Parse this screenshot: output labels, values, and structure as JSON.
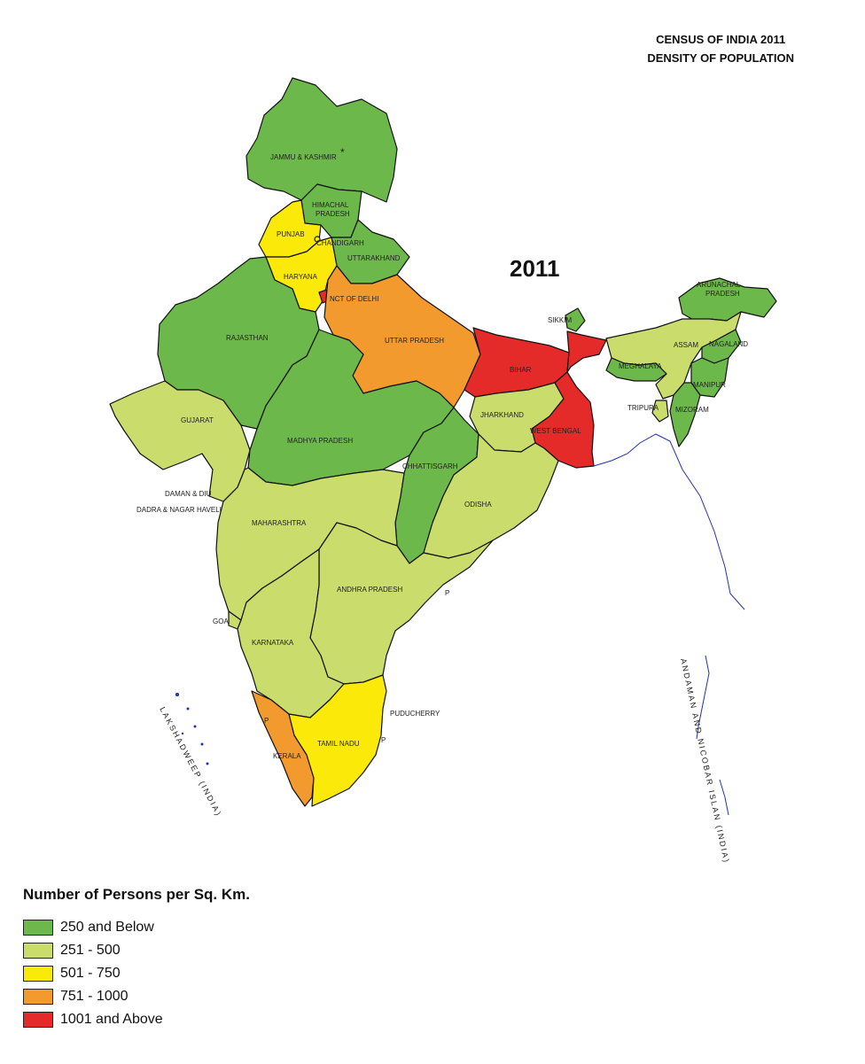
{
  "title": {
    "line1": "CENSUS OF INDIA 2011",
    "line2": "DENSITY OF POPULATION"
  },
  "year_label": "2011",
  "colors": {
    "low": "#6cb84a",
    "mid_low": "#cadc6c",
    "mid": "#fbe90a",
    "mid_high": "#f29a2e",
    "high": "#e52a2a"
  },
  "legend": {
    "title": "Number of Persons per Sq. Km.",
    "items": [
      {
        "label": "250 and Below",
        "color": "#6cb84a"
      },
      {
        "label": "251 - 500",
        "color": "#cadc6c"
      },
      {
        "label": "501 - 750",
        "color": "#fbe90a"
      },
      {
        "label": "751 - 1000",
        "color": "#f29a2e"
      },
      {
        "label": "1001 and Above",
        "color": "#e52a2a"
      }
    ]
  },
  "states": {
    "jk": "JAMMU & KASHMIR",
    "hp": "HIMACHAL PRADESH",
    "punjab": "PUNJAB",
    "chandigarh": "CHANDIGARH",
    "uttarakhand": "UTTARAKHAND",
    "haryana": "HARYANA",
    "delhi": "NCT OF DELHI",
    "rajasthan": "RAJASTHAN",
    "up": "UTTAR PRADESH",
    "bihar": "BIHAR",
    "sikkim": "SIKKIM",
    "arunachal": "ARUNACHAL PRADESH",
    "assam": "ASSAM",
    "nagaland": "NAGALAND",
    "meghalaya": "MEGHALAYA",
    "manipur": "MANIPUR",
    "tripura": "TRIPURA",
    "mizoram": "MIZORAM",
    "gujarat": "GUJARAT",
    "mp": "MADHYA PRADESH",
    "jharkhand": "JHARKHAND",
    "wb": "WEST BENGAL",
    "chhattisgarh": "CHHATTISGARH",
    "odisha": "ODISHA",
    "daman": "DAMAN & DIU",
    "dnh": "DADRA & NAGAR HAVELI",
    "maharashtra": "MAHARASHTRA",
    "ap": "ANDHRA PRADESH",
    "goa": "GOA",
    "karnataka": "KARNATAKA",
    "puducherry": "PUDUCHERRY",
    "tn": "TAMIL NADU",
    "kerala": "KERALA",
    "lakshadweep": "LAKSHADWEEP (INDIA)",
    "andaman": "ANDAMAN AND NICOBAR ISLAN (INDIA)",
    "p_marker": "P",
    "jk_asterisk": "*"
  }
}
